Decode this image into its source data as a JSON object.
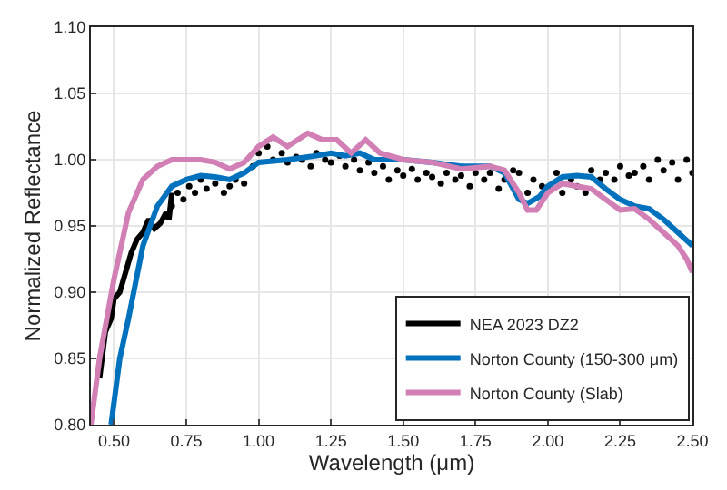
{
  "chart_data": {
    "type": "line",
    "xlabel": "Wavelength (μm)",
    "ylabel": "Normalized Reflectance",
    "xlim": [
      0.42,
      2.5
    ],
    "ylim": [
      0.8,
      1.1
    ],
    "xticks": [
      {
        "value": 0.5,
        "label": "0.50"
      },
      {
        "value": 0.75,
        "label": "0.75"
      },
      {
        "value": 1.0,
        "label": "1.00"
      },
      {
        "value": 1.25,
        "label": "1.25"
      },
      {
        "value": 1.5,
        "label": "1.50"
      },
      {
        "value": 1.75,
        "label": "1.75"
      },
      {
        "value": 2.0,
        "label": "2.00"
      },
      {
        "value": 2.25,
        "label": "2.25"
      },
      {
        "value": 2.5,
        "label": "2.50"
      }
    ],
    "yticks": [
      {
        "value": 0.8,
        "label": "0.80"
      },
      {
        "value": 0.85,
        "label": "0.85"
      },
      {
        "value": 0.9,
        "label": "0.90"
      },
      {
        "value": 0.95,
        "label": "0.95"
      },
      {
        "value": 1.0,
        "label": "1.00"
      },
      {
        "value": 1.05,
        "label": "1.05"
      },
      {
        "value": 1.1,
        "label": "1.10"
      }
    ],
    "grid": true,
    "legend": "bottom right",
    "line_style": "solid",
    "series": [
      {
        "type": "scatter",
        "marker": "circle",
        "color": "#000000",
        "x": [
          0.7,
          0.72,
          0.74,
          0.76,
          0.78,
          0.8,
          0.82,
          0.85,
          0.88,
          0.9,
          0.92,
          0.95,
          0.98,
          1.0,
          1.03,
          1.05,
          1.08,
          1.1,
          1.13,
          1.15,
          1.18,
          1.2,
          1.23,
          1.25,
          1.28,
          1.3,
          1.33,
          1.35,
          1.38,
          1.4,
          1.43,
          1.45,
          1.48,
          1.5,
          1.53,
          1.55,
          1.58,
          1.6,
          1.63,
          1.65,
          1.68,
          1.7,
          1.73,
          1.75,
          1.78,
          1.8,
          1.83,
          1.85,
          1.88,
          1.9,
          1.93,
          1.95,
          1.98,
          2.0,
          2.03,
          2.05,
          2.08,
          2.1,
          2.13,
          2.15,
          2.18,
          2.2,
          2.23,
          2.25,
          2.28,
          2.3,
          2.33,
          2.35,
          2.38,
          2.4,
          2.43,
          2.45,
          2.48,
          2.5
        ],
        "values": [
          0.965,
          0.975,
          0.97,
          0.98,
          0.975,
          0.985,
          0.978,
          0.982,
          0.975,
          0.98,
          0.985,
          0.982,
          0.995,
          1.005,
          1.01,
          1.0,
          1.005,
          0.998,
          1.002,
          1.0,
          0.995,
          1.005,
          1.0,
          0.998,
          1.003,
          0.995,
          1.0,
          0.992,
          0.998,
          0.99,
          0.995,
          0.985,
          0.992,
          0.988,
          0.993,
          0.985,
          0.99,
          0.987,
          0.982,
          0.99,
          0.985,
          0.988,
          0.98,
          0.99,
          0.985,
          0.99,
          0.978,
          0.985,
          0.992,
          0.99,
          0.975,
          0.985,
          0.98,
          0.978,
          0.99,
          0.975,
          0.985,
          0.98,
          0.975,
          0.992,
          0.985,
          0.99,
          0.985,
          0.995,
          0.988,
          0.99,
          0.995,
          0.985,
          1.0,
          0.992,
          0.998,
          0.985,
          1.0,
          0.99
        ]
      },
      {
        "name": "NEA 2023 DZ2",
        "color": "#000000",
        "marker": "none",
        "x": [
          0.45,
          0.47,
          0.49,
          0.5,
          0.52,
          0.54,
          0.56,
          0.58,
          0.6,
          0.62,
          0.64,
          0.66,
          0.68,
          0.69,
          0.7
        ],
        "values": [
          0.835,
          0.87,
          0.88,
          0.895,
          0.9,
          0.915,
          0.93,
          0.94,
          0.945,
          0.955,
          0.948,
          0.952,
          0.96,
          0.955,
          0.975
        ]
      },
      {
        "name": "Norton County (150-300 μm)",
        "color": "#0072bd",
        "marker": "none",
        "x": [
          0.49,
          0.52,
          0.55,
          0.6,
          0.65,
          0.7,
          0.75,
          0.8,
          0.85,
          0.9,
          0.95,
          1.0,
          1.1,
          1.2,
          1.25,
          1.3,
          1.35,
          1.4,
          1.5,
          1.6,
          1.7,
          1.8,
          1.85,
          1.9,
          1.93,
          1.97,
          2.0,
          2.05,
          2.1,
          2.15,
          2.2,
          2.25,
          2.3,
          2.35,
          2.4,
          2.45,
          2.5
        ],
        "values": [
          0.8,
          0.85,
          0.88,
          0.935,
          0.965,
          0.98,
          0.985,
          0.988,
          0.987,
          0.985,
          0.99,
          0.998,
          1.0,
          1.003,
          1.005,
          1.003,
          1.005,
          1.0,
          1.0,
          0.998,
          0.995,
          0.995,
          0.99,
          0.97,
          0.967,
          0.972,
          0.98,
          0.987,
          0.988,
          0.987,
          0.978,
          0.97,
          0.965,
          0.963,
          0.955,
          0.945,
          0.935
        ]
      },
      {
        "name": "Norton County (Slab)",
        "color": "#d17fb4",
        "marker": "none",
        "x": [
          0.42,
          0.45,
          0.5,
          0.55,
          0.6,
          0.65,
          0.7,
          0.8,
          0.85,
          0.9,
          0.95,
          1.0,
          1.05,
          1.1,
          1.17,
          1.22,
          1.27,
          1.32,
          1.37,
          1.42,
          1.5,
          1.6,
          1.7,
          1.8,
          1.85,
          1.9,
          1.93,
          1.96,
          2.0,
          2.05,
          2.1,
          2.15,
          2.2,
          2.25,
          2.3,
          2.35,
          2.4,
          2.45,
          2.48,
          2.5
        ],
        "values": [
          0.8,
          0.85,
          0.91,
          0.96,
          0.985,
          0.995,
          1.0,
          1.0,
          0.998,
          0.993,
          0.998,
          1.01,
          1.017,
          1.01,
          1.02,
          1.015,
          1.015,
          1.005,
          1.015,
          1.005,
          1.0,
          0.998,
          0.993,
          0.995,
          0.992,
          0.975,
          0.962,
          0.962,
          0.975,
          0.982,
          0.98,
          0.978,
          0.97,
          0.962,
          0.963,
          0.955,
          0.945,
          0.935,
          0.925,
          0.915
        ]
      }
    ]
  }
}
